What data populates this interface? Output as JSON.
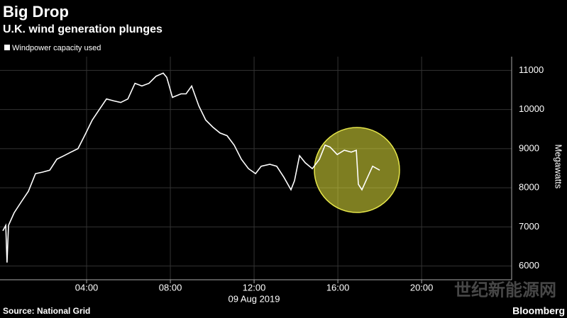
{
  "chart_data": {
    "type": "line",
    "title": "Big Drop",
    "subtitle": "U.K. wind generation plunges",
    "y_label": "Megawatts",
    "x_sublabel": "09 Aug 2019",
    "source": "Source: National Grid",
    "brand": "Bloomberg",
    "watermark": "世纪新能源网",
    "xlim": [
      0,
      24.3
    ],
    "ylim": [
      5650,
      11350
    ],
    "xticks": [
      {
        "value": 4,
        "label": "04:00"
      },
      {
        "value": 8,
        "label": "08:00"
      },
      {
        "value": 12,
        "label": "12:00"
      },
      {
        "value": 16,
        "label": "16:00"
      },
      {
        "value": 20,
        "label": "20:00"
      }
    ],
    "yticks": [
      6000,
      7000,
      8000,
      9000,
      10000,
      11000
    ],
    "grid": true,
    "series": [
      {
        "name": "Windpower capacity used",
        "color": "#ffffff",
        "x": [
          0,
          0.14,
          0.2,
          0.27,
          0.54,
          0.88,
          1.22,
          1.56,
          1.9,
          2.24,
          2.58,
          2.92,
          3.25,
          3.59,
          3.93,
          4.27,
          4.61,
          4.95,
          5.29,
          5.63,
          5.97,
          6.31,
          6.64,
          6.98,
          7.32,
          7.66,
          7.83,
          8.1,
          8.51,
          8.75,
          9.02,
          9.36,
          9.69,
          10.03,
          10.37,
          10.71,
          11.05,
          11.39,
          11.73,
          12.07,
          12.34,
          12.75,
          13.08,
          13.42,
          13.76,
          13.93,
          14.17,
          14.44,
          14.78,
          15.12,
          15.39,
          15.63,
          15.97,
          16.31,
          16.64,
          16.88,
          16.98,
          17.15,
          17.42,
          17.66,
          18.0
        ],
        "values": [
          6900,
          7040,
          6090,
          7040,
          7360,
          7640,
          7910,
          8360,
          8400,
          8450,
          8730,
          8820,
          8910,
          9000,
          9360,
          9730,
          10000,
          10270,
          10220,
          10180,
          10270,
          10670,
          10600,
          10670,
          10850,
          10930,
          10820,
          10310,
          10400,
          10400,
          10600,
          10090,
          9730,
          9550,
          9400,
          9330,
          9090,
          8730,
          8490,
          8360,
          8550,
          8600,
          8550,
          8270,
          7950,
          8180,
          8820,
          8640,
          8490,
          8730,
          9090,
          9040,
          8850,
          8960,
          8910,
          8960,
          8090,
          7950,
          8270,
          8550,
          8450
        ]
      }
    ]
  }
}
